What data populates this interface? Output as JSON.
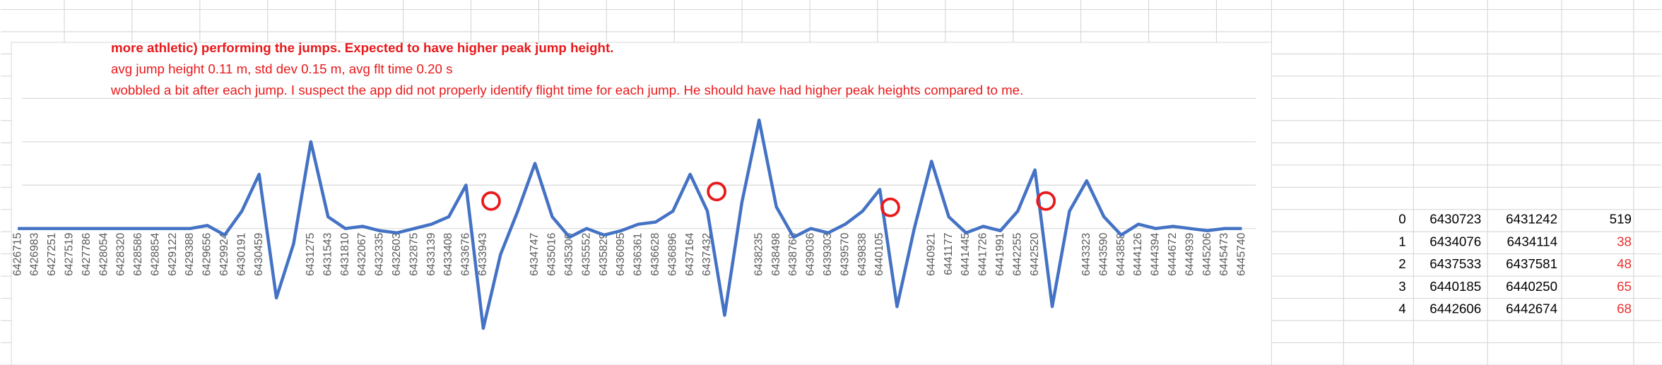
{
  "chart_data": {
    "type": "line",
    "annotations": [
      "more athletic) performing the jumps. Expected to have higher peak jump height.",
      "avg jump height 0.11 m, std dev 0.15 m, avg flt time 0.20 s",
      "wobbled a bit after each jump. I suspect the app did not properly identify flight time for each jump. He should have had higher peak heights compared to me."
    ],
    "annotation_color": "#e8191b",
    "categories": [
      "6426715",
      "6426983",
      "6427251",
      "6427519",
      "6427786",
      "6428054",
      "6428320",
      "6428586",
      "6428854",
      "6429122",
      "6429388",
      "6429656",
      "6429924",
      "6430191",
      "6430459",
      null,
      null,
      "6431275",
      "6431543",
      "6431810",
      "6432067",
      "6432335",
      "6432603",
      "6432875",
      "6433139",
      "6433408",
      "6433676",
      "6433943",
      null,
      null,
      "6434747",
      "6435016",
      "6435300",
      "6435552",
      "6435829",
      "6436095",
      "6436361",
      "6436628",
      "6436896",
      "6437164",
      "6437432",
      null,
      null,
      "6438235",
      "6438498",
      "6438768",
      "6439036",
      "6439303",
      "6439570",
      "6439838",
      "6440105",
      null,
      null,
      "6440921",
      "6441177",
      "6441445",
      "6441726",
      "6441991",
      "6442255",
      "6442520",
      null,
      null,
      "6443323",
      "6443590",
      "6443858",
      "6444126",
      "6444394",
      "6444672",
      "6444939",
      "6445206",
      "6445473",
      "6445740"
    ],
    "values": [
      0,
      0,
      0,
      0,
      0,
      0,
      0,
      0,
      0,
      0,
      0,
      0.07,
      -0.15,
      0.4,
      1.25,
      -1.6,
      -0.35,
      2.0,
      0.27,
      0,
      0.05,
      -0.05,
      -0.1,
      0,
      0.1,
      0.27,
      1.0,
      -2.3,
      -0.6,
      0.4,
      1.5,
      0.27,
      -0.2,
      0,
      -0.15,
      -0.05,
      0.1,
      0.15,
      0.4,
      1.25,
      0.4,
      -2.0,
      0.6,
      2.5,
      0.5,
      -0.2,
      0,
      -0.1,
      0.1,
      0.4,
      0.9,
      -1.8,
      0,
      1.55,
      0.27,
      -0.1,
      0.05,
      -0.05,
      0.4,
      1.35,
      -1.8,
      0.4,
      1.1,
      0.27,
      -0.15,
      0.1,
      0,
      0.05,
      0,
      -0.05,
      0,
      0
    ],
    "color": "#4472c4",
    "ylim": [
      -3,
      4
    ],
    "yticks": [
      0,
      1,
      2,
      3
    ],
    "grid": true
  },
  "table": {
    "rows": [
      [
        "0",
        "6430723",
        "6431242",
        "519"
      ],
      [
        "1",
        "6434076",
        "6434114",
        "38"
      ],
      [
        "2",
        "6437533",
        "6437581",
        "48"
      ],
      [
        "3",
        "6440185",
        "6440250",
        "65"
      ],
      [
        "4",
        "6442606",
        "6442674",
        "68"
      ]
    ],
    "last_column_colors": [
      "#000000",
      "#e8312f",
      "#e8312f",
      "#e8312f",
      "#e8312f"
    ]
  }
}
